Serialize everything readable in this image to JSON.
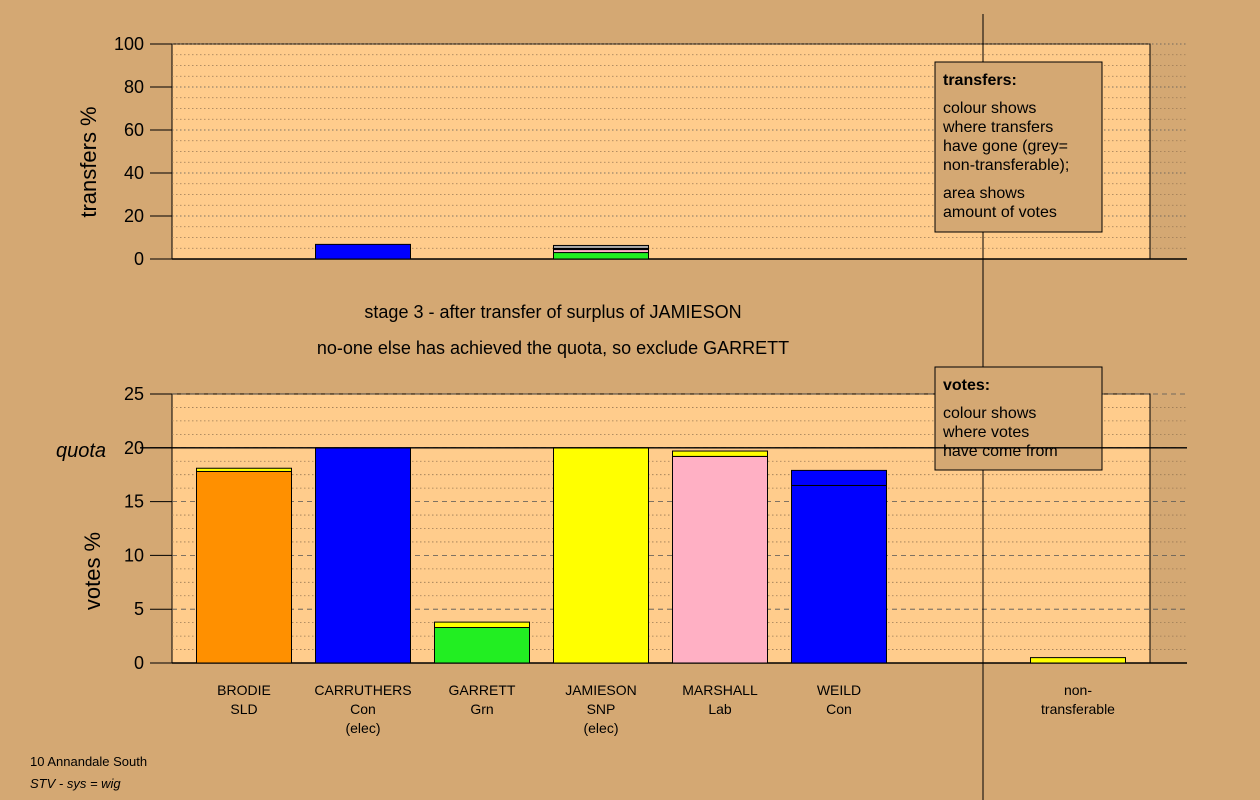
{
  "colors": {
    "background": "#d4a873",
    "plot_background": "#ffcc8c",
    "SLD": "#ff9000",
    "Con": "#0000ff",
    "Grn": "#22ee22",
    "SNP": "#ffff00",
    "Lab": "#ffb0c4",
    "nontransferable": "#aaaaaa"
  },
  "stage_title": "stage 3 - after transfer of surplus of JAMIESON",
  "stage_subtitle": "no-one else has achieved the quota, so exclude GARRETT",
  "footer": {
    "line1": "10 Annandale South",
    "line2": "STV - sys = wig"
  },
  "legend_transfers": {
    "title": "transfers:",
    "lines1": [
      "colour shows",
      "where transfers",
      "have gone (grey=",
      "non-transferable);"
    ],
    "lines2": [
      "area shows",
      "amount of votes"
    ]
  },
  "legend_votes": {
    "title": "votes:",
    "lines": [
      "colour shows",
      "where votes",
      "have come from"
    ]
  },
  "quota_label": "quota",
  "chart_data": [
    {
      "type": "bar",
      "stacked": true,
      "ylabel": "transfers %",
      "ylim": [
        0,
        100
      ],
      "yticks": [
        0,
        20,
        40,
        60,
        80,
        100
      ],
      "grid": true,
      "slots": [
        "BRODIE",
        "CARRUTHERS",
        "GARRETT",
        "JAMIESON",
        "MARSHALL",
        "WEILD",
        "non-transferable"
      ],
      "bars": [
        {
          "slot": 1,
          "segments": [
            {
              "color": "Con",
              "value": 6.8
            }
          ]
        },
        {
          "slot": 3,
          "segments": [
            {
              "color": "Grn",
              "value": 3.0
            },
            {
              "color": "Lab",
              "value": 1.4
            },
            {
              "color": "Con",
              "value": 0.5
            },
            {
              "color": "nontransferable",
              "value": 1.4
            }
          ]
        }
      ]
    },
    {
      "type": "bar",
      "stacked": true,
      "ylabel": "votes %",
      "ylim": [
        0,
        25
      ],
      "yticks": [
        0,
        5,
        10,
        15,
        20,
        25
      ],
      "quota": 20,
      "grid": true,
      "categories": [
        {
          "name": "BRODIE",
          "party": "SLD",
          "note": ""
        },
        {
          "name": "CARRUTHERS",
          "party": "Con",
          "note": "(elec)"
        },
        {
          "name": "GARRETT",
          "party": "Grn",
          "note": ""
        },
        {
          "name": "JAMIESON",
          "party": "SNP",
          "note": "(elec)"
        },
        {
          "name": "MARSHALL",
          "party": "Lab",
          "note": ""
        },
        {
          "name": "WEILD",
          "party": "Con",
          "note": ""
        },
        {
          "name": "non-",
          "party": "transferable",
          "note": ""
        }
      ],
      "bars": [
        {
          "slot": 0,
          "segments": [
            {
              "color": "SLD",
              "value": 17.8
            },
            {
              "color": "SNP",
              "value": 0.3
            }
          ]
        },
        {
          "slot": 1,
          "segments": [
            {
              "color": "Con",
              "value": 20.0
            }
          ]
        },
        {
          "slot": 2,
          "segments": [
            {
              "color": "Grn",
              "value": 3.3
            },
            {
              "color": "SNP",
              "value": 0.5
            }
          ]
        },
        {
          "slot": 3,
          "segments": [
            {
              "color": "SNP",
              "value": 20.0
            }
          ]
        },
        {
          "slot": 4,
          "segments": [
            {
              "color": "Lab",
              "value": 19.2
            },
            {
              "color": "SNP",
              "value": 0.5
            }
          ]
        },
        {
          "slot": 5,
          "segments": [
            {
              "color": "Con",
              "value": 16.5
            },
            {
              "color": "Con",
              "value": 1.4
            }
          ]
        },
        {
          "slot": 6,
          "segments": [
            {
              "color": "SNP",
              "value": 0.5
            }
          ]
        }
      ]
    }
  ]
}
